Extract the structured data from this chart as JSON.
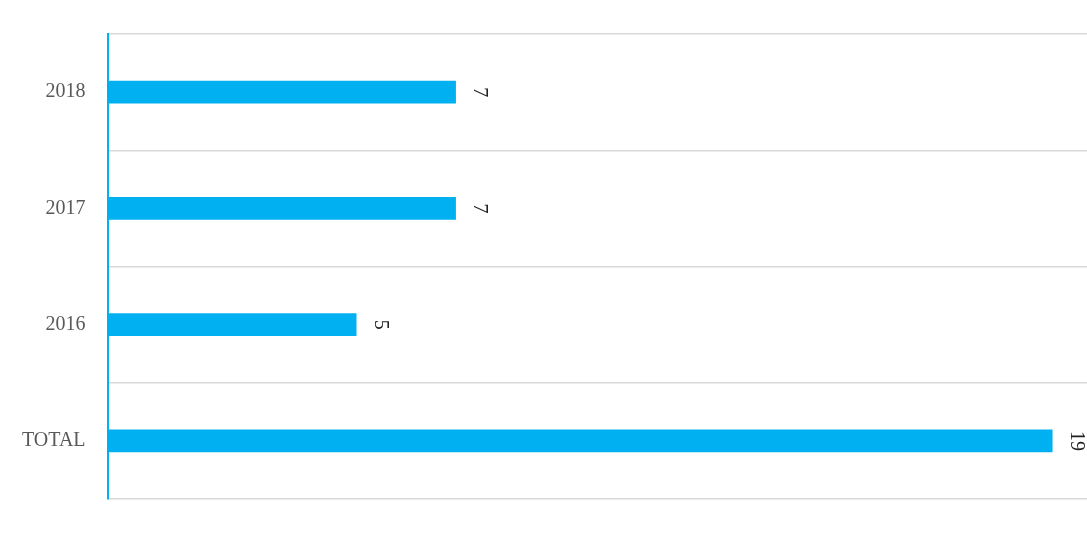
{
  "chart_data": {
    "type": "bar",
    "orientation": "horizontal",
    "categories": [
      "2018",
      "2017",
      "2016",
      "TOTAL"
    ],
    "values": [
      7,
      7,
      5,
      19
    ],
    "color": "#00b0f0",
    "xlim": [
      0,
      19.7
    ],
    "data_labels": true,
    "grid": "y",
    "legend": false,
    "tick_labels": "y"
  }
}
